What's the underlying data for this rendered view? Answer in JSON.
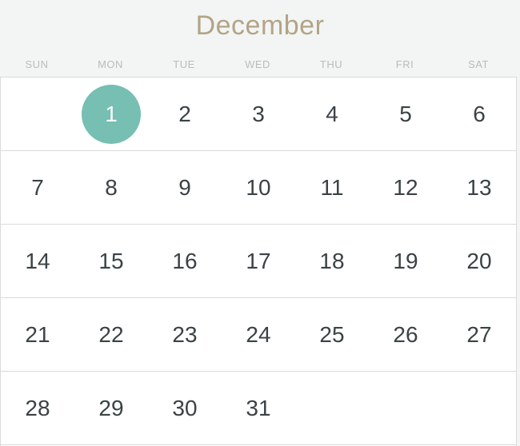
{
  "calendar": {
    "month": "December",
    "weekdays": [
      "SUN",
      "MON",
      "TUE",
      "WED",
      "THU",
      "FRI",
      "SAT"
    ],
    "selected_day": "1",
    "accent_color": "#76bfb2",
    "weeks": [
      [
        "",
        "1",
        "2",
        "3",
        "4",
        "5",
        "6"
      ],
      [
        "7",
        "8",
        "9",
        "10",
        "11",
        "12",
        "13"
      ],
      [
        "14",
        "15",
        "16",
        "17",
        "18",
        "19",
        "20"
      ],
      [
        "21",
        "22",
        "23",
        "24",
        "25",
        "26",
        "27"
      ],
      [
        "28",
        "29",
        "30",
        "31",
        "",
        "",
        ""
      ]
    ]
  }
}
